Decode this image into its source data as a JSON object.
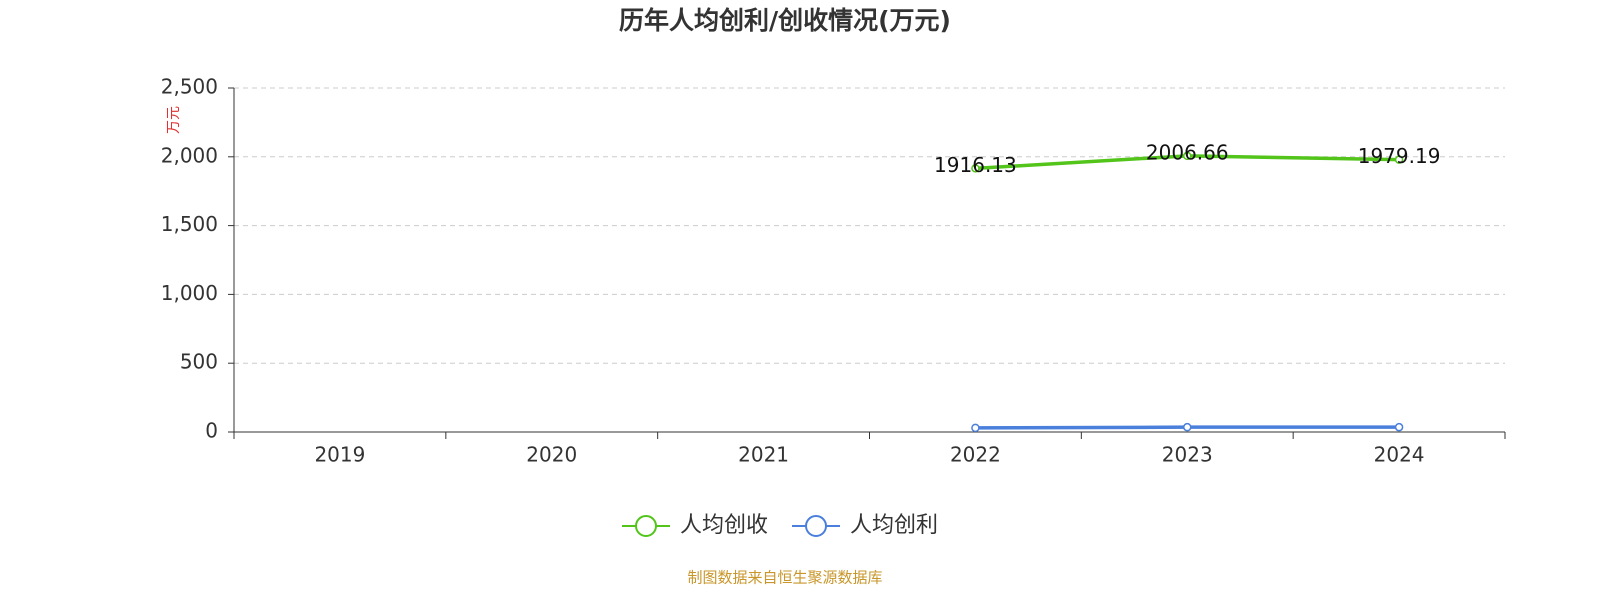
{
  "chart_data": {
    "type": "line",
    "title": "历年人均创利/创收情况(万元)",
    "y_axis_label": "万元",
    "categories": [
      "2019",
      "2020",
      "2021",
      "2022",
      "2023",
      "2024"
    ],
    "series": [
      {
        "name": "人均创收",
        "color": "#52c41a",
        "labels": true,
        "values": [
          null,
          null,
          null,
          1916.13,
          2006.66,
          1979.19
        ]
      },
      {
        "name": "人均创利",
        "color": "#4a7fdc",
        "labels": false,
        "values": [
          null,
          null,
          null,
          30,
          35,
          35
        ]
      }
    ],
    "ylim": [
      0,
      2500
    ],
    "yticks": [
      0,
      500,
      {
        "value": 1000,
        "label": "1,000"
      },
      {
        "value": 1500,
        "label": "1,500"
      },
      {
        "value": 2000,
        "label": "2,000"
      },
      {
        "value": 2500,
        "label": "2,500"
      }
    ],
    "grid": true,
    "legend": "bottom",
    "source": "制图数据来自恒生聚源数据库"
  }
}
